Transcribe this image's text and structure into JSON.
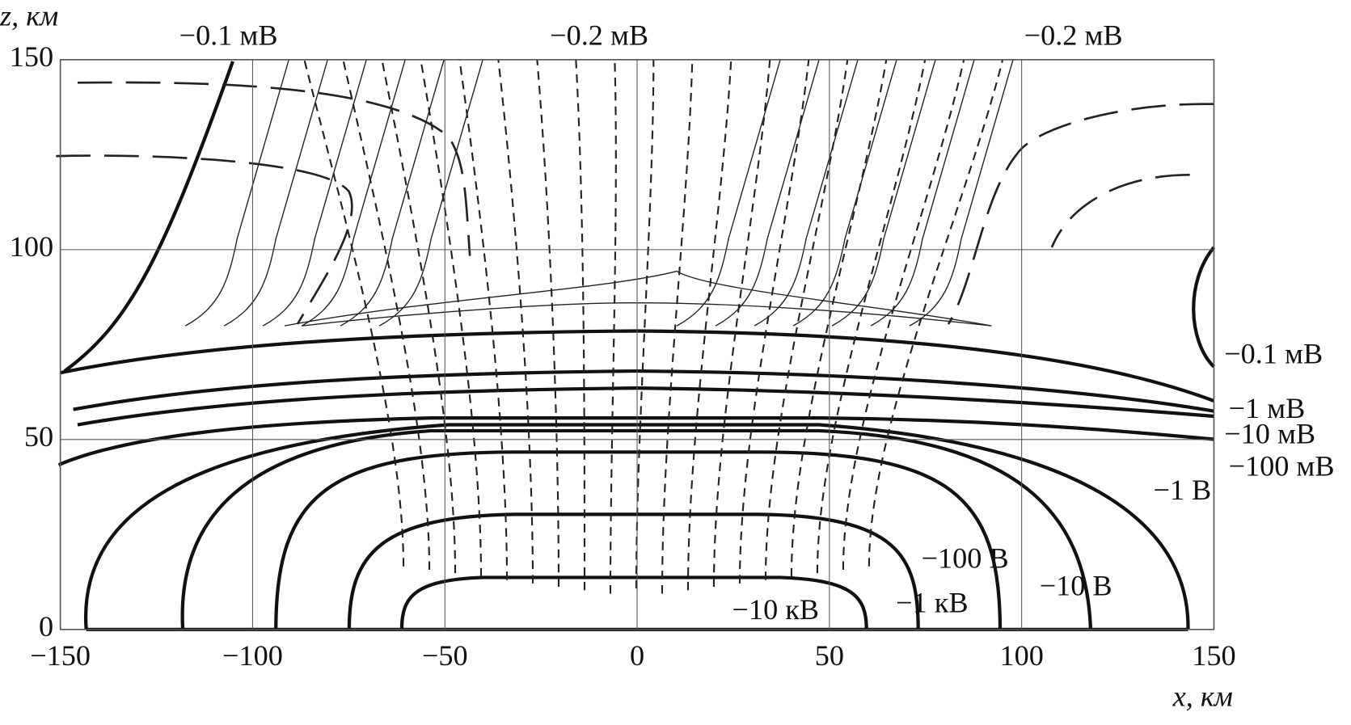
{
  "chart_data": {
    "type": "contour",
    "x_label": "x, км",
    "y_label": "z, км",
    "xlim": [
      -150,
      150
    ],
    "ylim": [
      0,
      150
    ],
    "xticks": [
      {
        "value": -150,
        "label": "−150"
      },
      {
        "value": -100,
        "label": "−100"
      },
      {
        "value": -50,
        "label": "−50"
      },
      0,
      50,
      100,
      150
    ],
    "yticks": [
      0,
      50,
      100,
      150
    ],
    "grid": true,
    "annotations": [
      "−0.1 мВ",
      "−0.2 мВ",
      "−0.2 мВ",
      "−0.1 мВ",
      "−1 мВ",
      "−10 мВ",
      "−100 мВ",
      "−1 В",
      "−100 В",
      "−10 В",
      "−1 кВ",
      "−10 кВ"
    ]
  }
}
